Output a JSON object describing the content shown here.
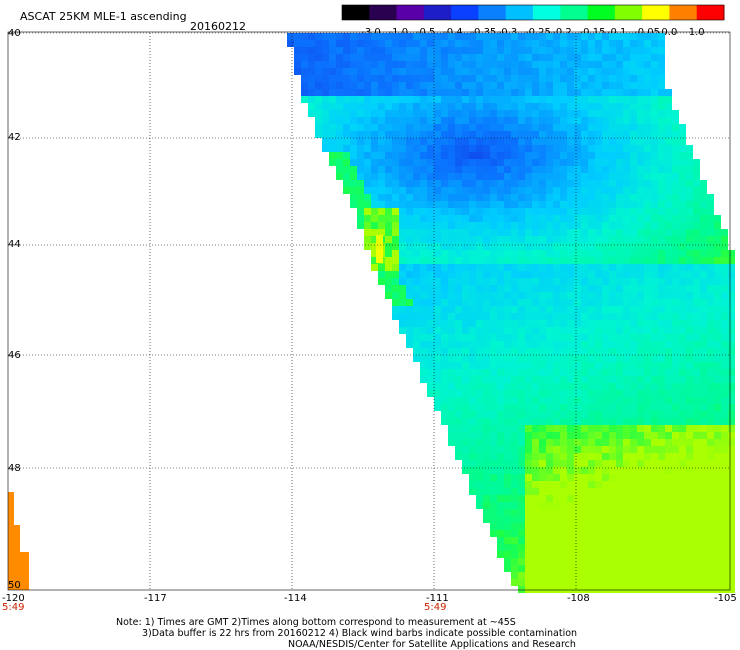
{
  "title": "ASCAT 25KM MLE-1 ascending",
  "date": "20160212",
  "colorbar": {
    "ticks": [
      "-3.0",
      "-1.0",
      "-0.5",
      "-0.4",
      "-0.35",
      "-0.3",
      "-0.25",
      "-0.2",
      "-0.15",
      "-0.1",
      "-0.05",
      "0.0",
      "1.0"
    ],
    "colors": [
      "#000000",
      "#2a0050",
      "#5a00a8",
      "#1e1ec8",
      "#0a40ff",
      "#0a80ff",
      "#00c0ff",
      "#00ffe0",
      "#00ff90",
      "#00ff20",
      "#80ff00",
      "#ffff00",
      "#ff8000",
      "#ff0000"
    ]
  },
  "lat_labels": [
    "40",
    "42",
    "44",
    "46",
    "48",
    "50"
  ],
  "lon_labels": [
    "-120",
    "-117",
    "-114",
    "-111",
    "-108",
    "-105"
  ],
  "times": [
    "5:49",
    "5:49"
  ],
  "notes": {
    "line1": "Note: 1) Times are GMT 2)Times along bottom correspond to measurement at ~45S",
    "line2": "3)Data buffer is 22 hrs from 20160212 4) Black wind barbs indicate possible contamination",
    "line3": "NOAA/NESDIS/Center for Satellite Applications and Research"
  }
}
